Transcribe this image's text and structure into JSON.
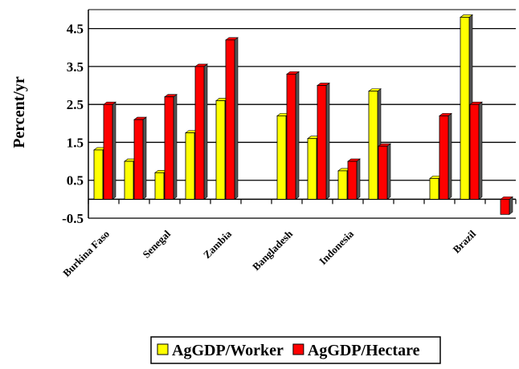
{
  "chart_data": {
    "type": "bar",
    "y_label": "Percent/yr",
    "categories": [
      "Burkina Faso",
      null,
      "Senegal",
      null,
      "Zambia",
      null,
      "Bangladesh",
      null,
      "Indonesia",
      null,
      null,
      null,
      "Brazil",
      null
    ],
    "series": [
      {
        "name": "AgGDP/Worker",
        "color": "#ffff00",
        "values": [
          1.3,
          1.0,
          0.7,
          1.75,
          2.6,
          null,
          2.2,
          1.6,
          0.75,
          2.85,
          null,
          0.55,
          4.8,
          null
        ]
      },
      {
        "name": "AgGDP/Hectare",
        "color": "#ff0000",
        "values": [
          2.5,
          2.1,
          2.7,
          3.5,
          4.2,
          null,
          3.3,
          3.0,
          1.0,
          1.4,
          null,
          2.2,
          2.5,
          -0.4
        ]
      }
    ],
    "ylim": [
      -0.5,
      5.0
    ],
    "yticks": [
      -0.5,
      0.5,
      1.5,
      2.5,
      3.5,
      4.5
    ],
    "grid": true
  }
}
